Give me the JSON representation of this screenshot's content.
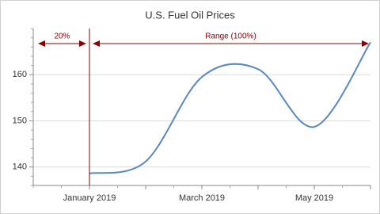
{
  "chart_data": {
    "type": "line",
    "title": "U.S. Fuel Oil Prices",
    "categories": [
      "January 2019",
      null,
      "March 2019",
      null,
      "May 2019",
      null
    ],
    "series": [
      {
        "name": "U.S. Fuel Oil Prices",
        "color": "#5a88c0",
        "values": [
          138.6,
          141.2,
          159.5,
          161.2,
          148.7,
          167
        ]
      }
    ],
    "ylim": [
      136,
      170
    ],
    "yticks": [
      140,
      150,
      160
    ],
    "grid": true,
    "annotations": [
      "20%",
      "Range (100%)"
    ],
    "annotation_color": "#8b0000"
  }
}
